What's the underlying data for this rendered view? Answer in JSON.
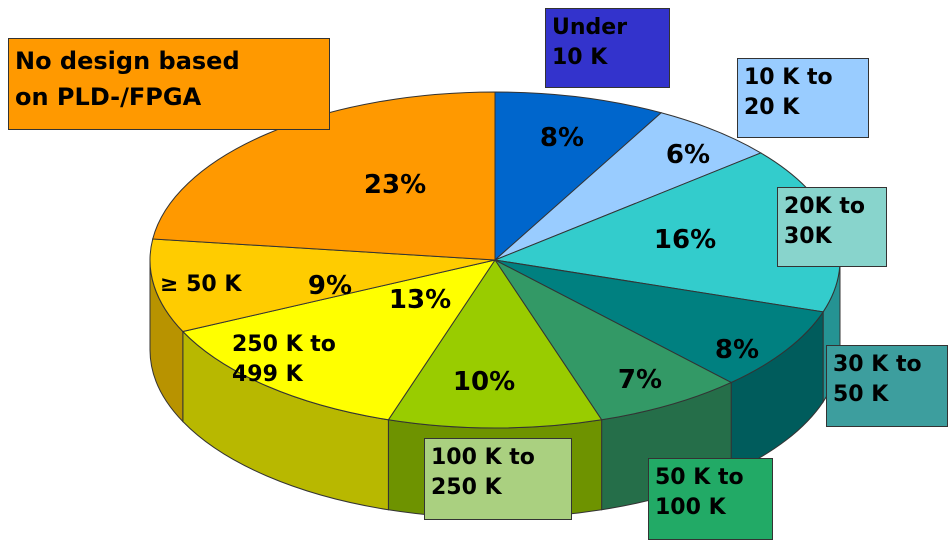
{
  "chart_data": {
    "type": "pie",
    "view": "3d",
    "categories": [
      "Under\n10 K",
      "10 K to\n20 K",
      "20K to\n30K",
      "30 K to\n50 K",
      "50 K to\n100 K",
      "100 K to\n250 K",
      "250 K  to\n499 K",
      "≥ 50 K",
      "No design based\non  PLD-/FPGA"
    ],
    "values": [
      8,
      6,
      16,
      8,
      7,
      10,
      13,
      9,
      23
    ],
    "value_labels": [
      "8%",
      "6%",
      "16%",
      "8%",
      "7%",
      "10%",
      "13%",
      "9%",
      "23%"
    ],
    "colors": [
      "#0066cc",
      "#99ccff",
      "#33cccc",
      "#008080",
      "#339966",
      "#99cc00",
      "#ffff00",
      "#ffcc00",
      "#ff9900"
    ]
  }
}
